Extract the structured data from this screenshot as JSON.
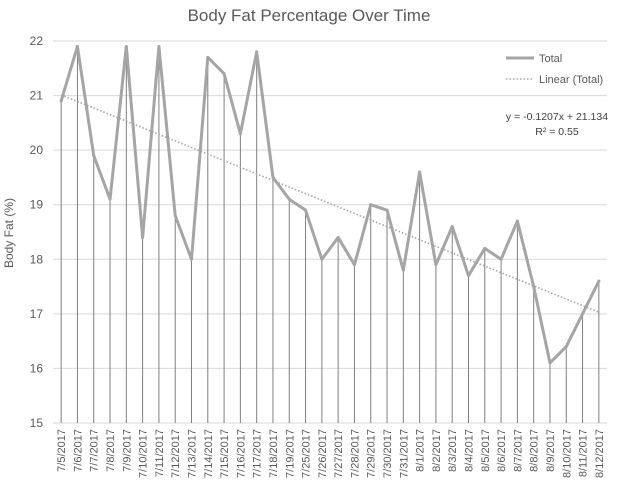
{
  "chart_data": {
    "type": "line",
    "title": "Body Fat Percentage Over Time",
    "ylabel": "Body Fat (%)",
    "xlabel": "",
    "ylim": [
      15,
      22
    ],
    "yticks": [
      "15",
      "16",
      "17",
      "18",
      "19",
      "20",
      "21",
      "22"
    ],
    "categories": [
      "7/5/2017",
      "7/6/2017",
      "7/7/2017",
      "7/8/2017",
      "7/9/2017",
      "7/10/2017",
      "7/11/2017",
      "7/12/2017",
      "7/13/2017",
      "7/14/2017",
      "7/15/2017",
      "7/16/2017",
      "7/17/2017",
      "7/18/2017",
      "7/19/2017",
      "7/25/2017",
      "7/26/2017",
      "7/27/2017",
      "7/28/2017",
      "7/29/2017",
      "7/30/2017",
      "7/31/2017",
      "8/1/2017",
      "8/2/2017",
      "8/3/2017",
      "8/4/2017",
      "8/5/2017",
      "8/6/2017",
      "8/7/2017",
      "8/8/2017",
      "8/9/2017",
      "8/10/2017",
      "8/11/2017",
      "8/12/2017"
    ],
    "series": [
      {
        "name": "Total",
        "color": "#a5a5a5",
        "values": [
          20.9,
          21.9,
          19.9,
          19.1,
          21.9,
          18.4,
          21.9,
          18.8,
          18.0,
          21.7,
          21.4,
          20.3,
          21.8,
          19.5,
          19.1,
          18.9,
          18.0,
          18.4,
          17.9,
          19.0,
          18.9,
          17.8,
          19.6,
          17.9,
          18.6,
          17.7,
          18.2,
          18.0,
          18.7,
          17.5,
          16.1,
          16.4,
          17.0,
          17.6
        ]
      }
    ],
    "trendline": {
      "name": "Linear (Total)",
      "slope": -0.1207,
      "intercept": 21.134,
      "color": "#a5a5a5"
    },
    "annotation": {
      "equation": "y = -0.1207x + 21.134",
      "r_squared": "R² = 0.55"
    },
    "drop_lines": true,
    "grid": true,
    "legend_position": "top-right"
  }
}
